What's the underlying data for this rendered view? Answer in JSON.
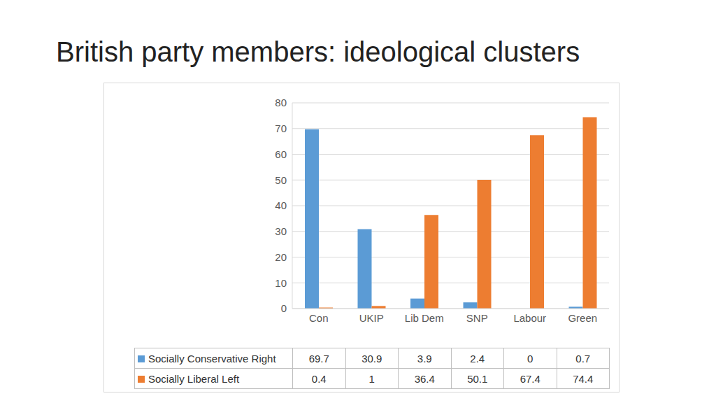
{
  "chart_data": {
    "type": "bar",
    "title": "British party members: ideological clusters",
    "categories": [
      "Con",
      "UKIP",
      "Lib Dem",
      "SNP",
      "Labour",
      "Green"
    ],
    "series": [
      {
        "name": "Socially Conservative Right",
        "color": "#5b9bd5",
        "values": [
          69.7,
          30.9,
          3.9,
          2.4,
          0,
          0.7
        ]
      },
      {
        "name": "Socially Liberal Left",
        "color": "#ed7d31",
        "values": [
          0.4,
          1,
          36.4,
          50.1,
          67.4,
          74.4
        ]
      }
    ],
    "ylim": [
      0,
      80
    ],
    "yticks": [
      0,
      10,
      20,
      30,
      40,
      50,
      60,
      70,
      80
    ],
    "grid": true,
    "legend": "bottom"
  }
}
